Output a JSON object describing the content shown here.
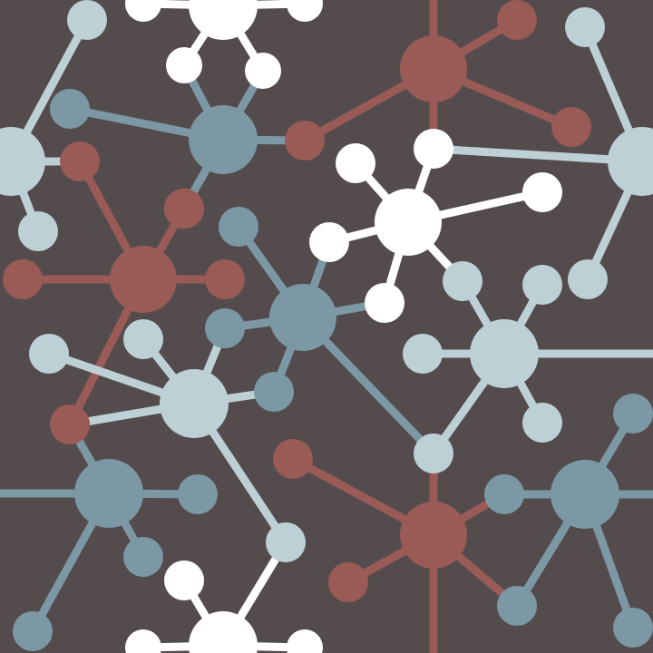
{
  "background": "#544b4d",
  "palette": {
    "white": "#ffffff",
    "pale-blue": "#bdd0d6",
    "slate-blue": "#7b98a4",
    "brick-red": "#9a5b57"
  },
  "pattern": {
    "name": "molecular-network-pattern",
    "cluster_colors": [
      "white",
      "pale-blue",
      "slate-blue",
      "brick-red"
    ]
  }
}
